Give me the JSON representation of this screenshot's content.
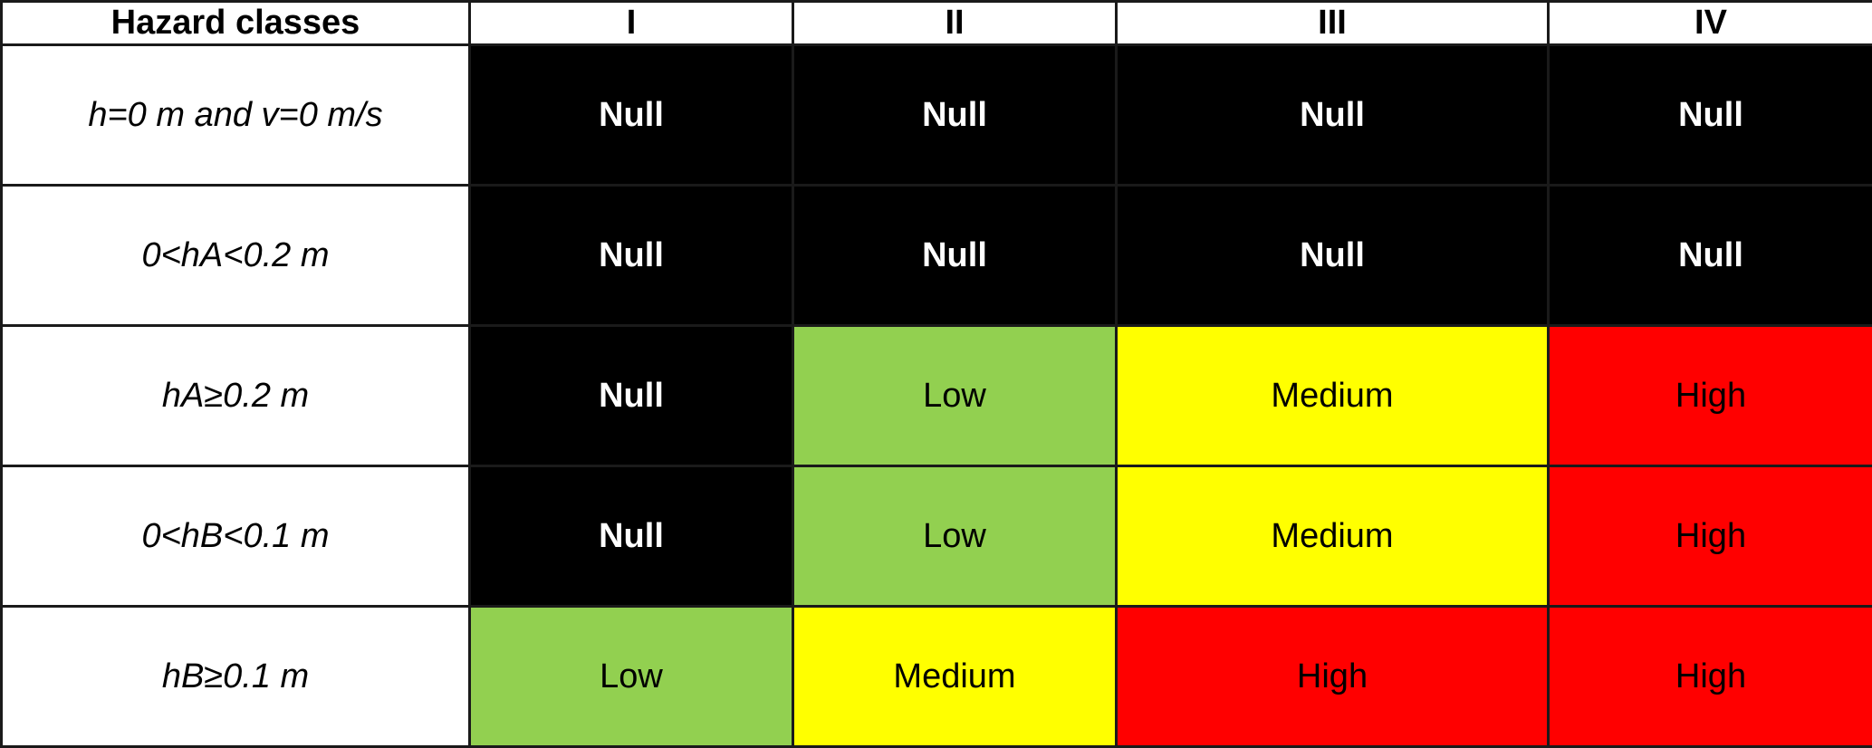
{
  "table": {
    "header": [
      "Hazard classes",
      "I",
      "II",
      "III",
      "IV"
    ],
    "rows": [
      {
        "label": "h=0 m and v=0 m/s",
        "cells": [
          "Null",
          "Null",
          "Null",
          "Null"
        ]
      },
      {
        "label": "0<hA<0.2 m",
        "cells": [
          "Null",
          "Null",
          "Null",
          "Null"
        ]
      },
      {
        "label": "hA≥0.2 m",
        "cells": [
          "Null",
          "Low",
          "Medium",
          "High"
        ]
      },
      {
        "label": "0<hB<0.1 m",
        "cells": [
          "Null",
          "Low",
          "Medium",
          "High"
        ]
      },
      {
        "label": "hB≥0.1 m",
        "cells": [
          "Low",
          "Medium",
          "High",
          "High"
        ]
      }
    ]
  },
  "colors": {
    "Null": "#000000",
    "Low": "#92D050",
    "Medium": "#FFFF00",
    "High": "#FF0000"
  }
}
